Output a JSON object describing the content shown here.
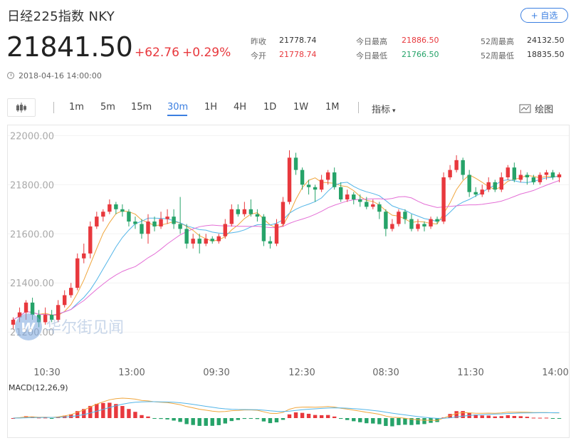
{
  "header": {
    "title": "日经225指数  NKY",
    "add_button": "+ 自选",
    "price": "21841.50",
    "change": "+62.76",
    "change_pct": "+0.29%",
    "timestamp": "2018-04-16 14:00:00"
  },
  "stats": {
    "prev_close_label": "昨收",
    "prev_close": "21778.74",
    "open_label": "今开",
    "open": "21778.74",
    "day_high_label": "今日最高",
    "day_high": "21886.50",
    "day_low_label": "今日最低",
    "day_low": "21766.50",
    "wk52_high_label": "52周最高",
    "wk52_high": "24132.50",
    "wk52_low_label": "52周最低",
    "wk52_low": "18835.50"
  },
  "toolbar": {
    "periods": [
      "1m",
      "5m",
      "15m",
      "30m",
      "1H",
      "4H",
      "1D",
      "1W",
      "1M"
    ],
    "active_period": "30m",
    "indicator_label": "指标",
    "draw_label": "绘图"
  },
  "colors": {
    "up": "#e8383d",
    "down": "#26a369",
    "accent": "#3b7fe1",
    "ma_short": "#f0a63d",
    "ma_mid": "#53b5e8",
    "ma_long": "#e46fd6"
  },
  "watermark": "华尔街见闻",
  "chart_data": {
    "type": "candlestick",
    "y_ticks": [
      "22000.00",
      "21800.00",
      "21600.00",
      "21400.00",
      "21200.00"
    ],
    "ylim": [
      21160,
      22030
    ],
    "x_ticks": [
      "10:30",
      "13:00",
      "09:30",
      "12:30",
      "08:30",
      "11:30",
      "14:00"
    ],
    "macd_label": "MACD(12,26,9)",
    "candles": [
      [
        21230,
        21250,
        21210,
        21260
      ],
      [
        21260,
        21280,
        21240,
        21300
      ],
      [
        21280,
        21320,
        21250,
        21330
      ],
      [
        21320,
        21270,
        21250,
        21340
      ],
      [
        21270,
        21240,
        21220,
        21290
      ],
      [
        21240,
        21270,
        21230,
        21300
      ],
      [
        21270,
        21250,
        21240,
        21290
      ],
      [
        21250,
        21310,
        21240,
        21330
      ],
      [
        21310,
        21350,
        21300,
        21370
      ],
      [
        21350,
        21380,
        21340,
        21400
      ],
      [
        21380,
        21500,
        21370,
        21520
      ],
      [
        21500,
        21520,
        21480,
        21560
      ],
      [
        21520,
        21630,
        21500,
        21650
      ],
      [
        21630,
        21670,
        21620,
        21690
      ],
      [
        21670,
        21690,
        21650,
        21700
      ],
      [
        21690,
        21720,
        21680,
        21740
      ],
      [
        21720,
        21700,
        21680,
        21730
      ],
      [
        21700,
        21690,
        21670,
        21720
      ],
      [
        21690,
        21650,
        21630,
        21700
      ],
      [
        21650,
        21640,
        21620,
        21670
      ],
      [
        21640,
        21600,
        21580,
        21660
      ],
      [
        21600,
        21650,
        21560,
        21680
      ],
      [
        21650,
        21630,
        21610,
        21670
      ],
      [
        21630,
        21660,
        21620,
        21690
      ],
      [
        21660,
        21670,
        21640,
        21700
      ],
      [
        21670,
        21640,
        21620,
        21700
      ],
      [
        21640,
        21620,
        21600,
        21750
      ],
      [
        21620,
        21560,
        21540,
        21640
      ],
      [
        21560,
        21580,
        21540,
        21600
      ],
      [
        21580,
        21560,
        21520,
        21600
      ],
      [
        21560,
        21580,
        21550,
        21600
      ],
      [
        21580,
        21570,
        21560,
        21590
      ],
      [
        21570,
        21590,
        21560,
        21600
      ],
      [
        21590,
        21640,
        21580,
        21660
      ],
      [
        21640,
        21700,
        21630,
        21720
      ],
      [
        21700,
        21680,
        21670,
        21720
      ],
      [
        21680,
        21700,
        21670,
        21730
      ],
      [
        21700,
        21680,
        21670,
        21740
      ],
      [
        21680,
        21670,
        21650,
        21700
      ],
      [
        21670,
        21570,
        21550,
        21680
      ],
      [
        21570,
        21560,
        21540,
        21590
      ],
      [
        21560,
        21640,
        21550,
        21660
      ],
      [
        21640,
        21730,
        21630,
        21750
      ],
      [
        21730,
        21910,
        21720,
        21940
      ],
      [
        21910,
        21860,
        21840,
        21930
      ],
      [
        21860,
        21800,
        21780,
        21870
      ],
      [
        21800,
        21790,
        21760,
        21820
      ],
      [
        21790,
        21780,
        21730,
        21800
      ],
      [
        21780,
        21820,
        21770,
        21840
      ],
      [
        21820,
        21850,
        21800,
        21860
      ],
      [
        21850,
        21790,
        21780,
        21870
      ],
      [
        21790,
        21740,
        21730,
        21810
      ],
      [
        21740,
        21760,
        21730,
        21780
      ],
      [
        21760,
        21740,
        21720,
        21770
      ],
      [
        21740,
        21730,
        21710,
        21760
      ],
      [
        21730,
        21710,
        21700,
        21750
      ],
      [
        21710,
        21720,
        21700,
        21740
      ],
      [
        21720,
        21690,
        21660,
        21730
      ],
      [
        21690,
        21620,
        21590,
        21700
      ],
      [
        21620,
        21640,
        21610,
        21660
      ],
      [
        21640,
        21690,
        21630,
        21700
      ],
      [
        21690,
        21660,
        21640,
        21700
      ],
      [
        21660,
        21620,
        21610,
        21680
      ],
      [
        21620,
        21640,
        21610,
        21660
      ],
      [
        21640,
        21630,
        21610,
        21650
      ],
      [
        21630,
        21660,
        21620,
        21670
      ],
      [
        21660,
        21650,
        21640,
        21670
      ],
      [
        21650,
        21830,
        21640,
        21850
      ],
      [
        21830,
        21860,
        21820,
        21880
      ],
      [
        21860,
        21900,
        21850,
        21920
      ],
      [
        21900,
        21840,
        21820,
        21910
      ],
      [
        21840,
        21770,
        21750,
        21860
      ],
      [
        21770,
        21760,
        21750,
        21790
      ],
      [
        21760,
        21780,
        21750,
        21800
      ],
      [
        21780,
        21810,
        21770,
        21830
      ],
      [
        21810,
        21780,
        21770,
        21820
      ],
      [
        21780,
        21830,
        21770,
        21850
      ],
      [
        21830,
        21870,
        21820,
        21880
      ],
      [
        21870,
        21820,
        21810,
        21890
      ],
      [
        21820,
        21840,
        21810,
        21860
      ],
      [
        21840,
        21830,
        21800,
        21850
      ],
      [
        21830,
        21810,
        21800,
        21840
      ],
      [
        21810,
        21840,
        21800,
        21850
      ],
      [
        21840,
        21850,
        21820,
        21860
      ],
      [
        21850,
        21830,
        21820,
        21860
      ],
      [
        21830,
        21842,
        21810,
        21850
      ]
    ]
  }
}
